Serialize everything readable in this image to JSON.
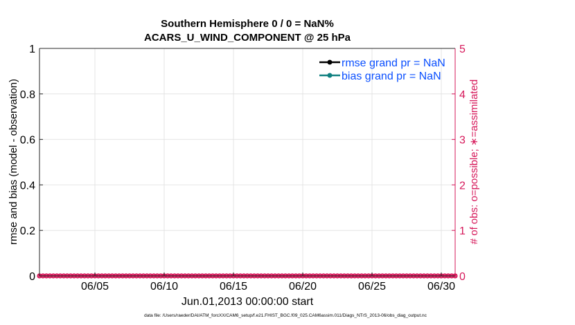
{
  "chart_data": {
    "type": "line",
    "title": [
      "Southern Hemisphere 0 / 0 = NaN%",
      "ACARS_U_WIND_COMPONENT @ 25 hPa"
    ],
    "xlabel": "Jun.01,2013 00:00:00 start",
    "ylabel": "rmse and bias (model - observation)",
    "ylabel_right": "# of obs: o=possible; ∗=assimilated",
    "xlim": [
      "2013-06-01T00:00",
      "2013-07-01T00:00"
    ],
    "ylim": [
      0,
      1
    ],
    "ylim_right": [
      0,
      5
    ],
    "x_ticks": [
      {
        "date": "2013-06-05",
        "label": "06/05"
      },
      {
        "date": "2013-06-10",
        "label": "06/10"
      },
      {
        "date": "2013-06-15",
        "label": "06/15"
      },
      {
        "date": "2013-06-20",
        "label": "06/20"
      },
      {
        "date": "2013-06-25",
        "label": "06/25"
      },
      {
        "date": "2013-06-30",
        "label": "06/30"
      }
    ],
    "y_ticks": [
      "0",
      "0.2",
      "0.4",
      "0.6",
      "0.8",
      "1"
    ],
    "y_ticks_right": [
      "0",
      "1",
      "2",
      "3",
      "4",
      "5"
    ],
    "grid": true,
    "legend_position": "top-right",
    "series": [
      {
        "name": "rmse grand pr = NaN",
        "color": "#000000",
        "values": "NaN"
      },
      {
        "name": "bias grand pr = NaN",
        "color": "#0f8080",
        "values": "NaN"
      }
    ],
    "obs_counts": {
      "color": "#d6185a",
      "x_start": "2013-06-01T00:00",
      "x_end": "2013-07-01T00:00",
      "step_hours": 6,
      "possible": 0,
      "assimilated": 0
    },
    "colors": {
      "legend_text": "#0a4fff",
      "right_axis": "#d6185a"
    }
  },
  "footer": "data file: /Users/raeder/DAI/ATM_forcXX/CAM6_setup/f.e21.FHIST_BGC.f09_025.CAM6assim.011/Diags_NTrS_2013-06/obs_diag_output.nc"
}
